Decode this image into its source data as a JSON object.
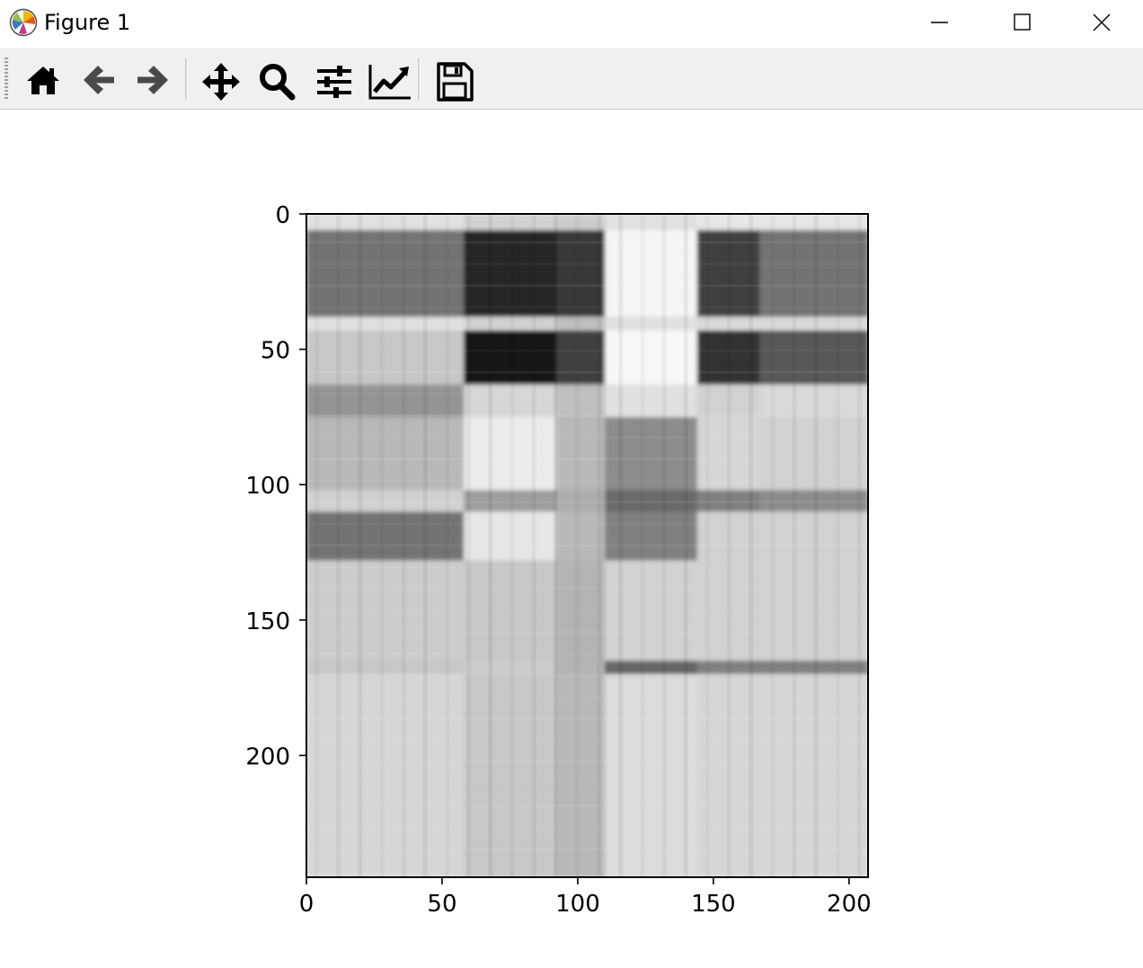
{
  "window": {
    "title": "Figure 1",
    "controls": [
      "minimize",
      "maximize",
      "close"
    ]
  },
  "toolbar": {
    "buttons": [
      {
        "name": "home",
        "icon": "home-icon"
      },
      {
        "name": "back",
        "icon": "arrow-left-icon"
      },
      {
        "name": "forward",
        "icon": "arrow-right-icon"
      },
      {
        "name": "pan",
        "icon": "move-icon"
      },
      {
        "name": "zoom",
        "icon": "magnifier-icon"
      },
      {
        "name": "configure-subplots",
        "icon": "sliders-icon"
      },
      {
        "name": "edit-axes",
        "icon": "line-chart-icon"
      },
      {
        "name": "save",
        "icon": "floppy-disk-icon"
      }
    ]
  },
  "chart_data": {
    "type": "heatmap",
    "colormap": "gray",
    "title": "",
    "xlabel": "",
    "ylabel": "",
    "xlim": [
      0,
      207
    ],
    "ylim": [
      245,
      0
    ],
    "xticks": [
      "0",
      "50",
      "100",
      "150",
      "200"
    ],
    "yticks": [
      "0",
      "50",
      "100",
      "150",
      "200"
    ],
    "col_blocks": [
      {
        "range": [
          0,
          58
        ],
        "levels": [
          0.88,
          0.45,
          0.88,
          0.78,
          0.58,
          0.72,
          0.82,
          0.45,
          0.8,
          0.78,
          0.84
        ]
      },
      {
        "range": [
          58,
          92
        ],
        "levels": [
          0.82,
          0.15,
          0.82,
          0.08,
          0.84,
          0.92,
          0.62,
          0.9,
          0.78,
          0.8,
          0.78
        ]
      },
      {
        "range": [
          92,
          110
        ],
        "levels": [
          0.8,
          0.22,
          0.75,
          0.25,
          0.75,
          0.72,
          0.68,
          0.72,
          0.7,
          0.7,
          0.72
        ]
      },
      {
        "range": [
          110,
          144
        ],
        "levels": [
          0.88,
          0.96,
          0.88,
          0.97,
          0.88,
          0.55,
          0.42,
          0.5,
          0.82,
          0.4,
          0.86
        ]
      },
      {
        "range": [
          144,
          167
        ],
        "levels": [
          0.9,
          0.25,
          0.85,
          0.2,
          0.82,
          0.84,
          0.5,
          0.82,
          0.82,
          0.5,
          0.84
        ]
      },
      {
        "range": [
          167,
          207
        ],
        "levels": [
          0.9,
          0.45,
          0.85,
          0.35,
          0.85,
          0.82,
          0.55,
          0.82,
          0.82,
          0.5,
          0.84
        ]
      }
    ],
    "row_blocks": [
      [
        0,
        6
      ],
      [
        6,
        38
      ],
      [
        38,
        43
      ],
      [
        43,
        63
      ],
      [
        63,
        75
      ],
      [
        75,
        102
      ],
      [
        102,
        110
      ],
      [
        110,
        128
      ],
      [
        128,
        165
      ],
      [
        165,
        170
      ],
      [
        170,
        245
      ]
    ]
  }
}
